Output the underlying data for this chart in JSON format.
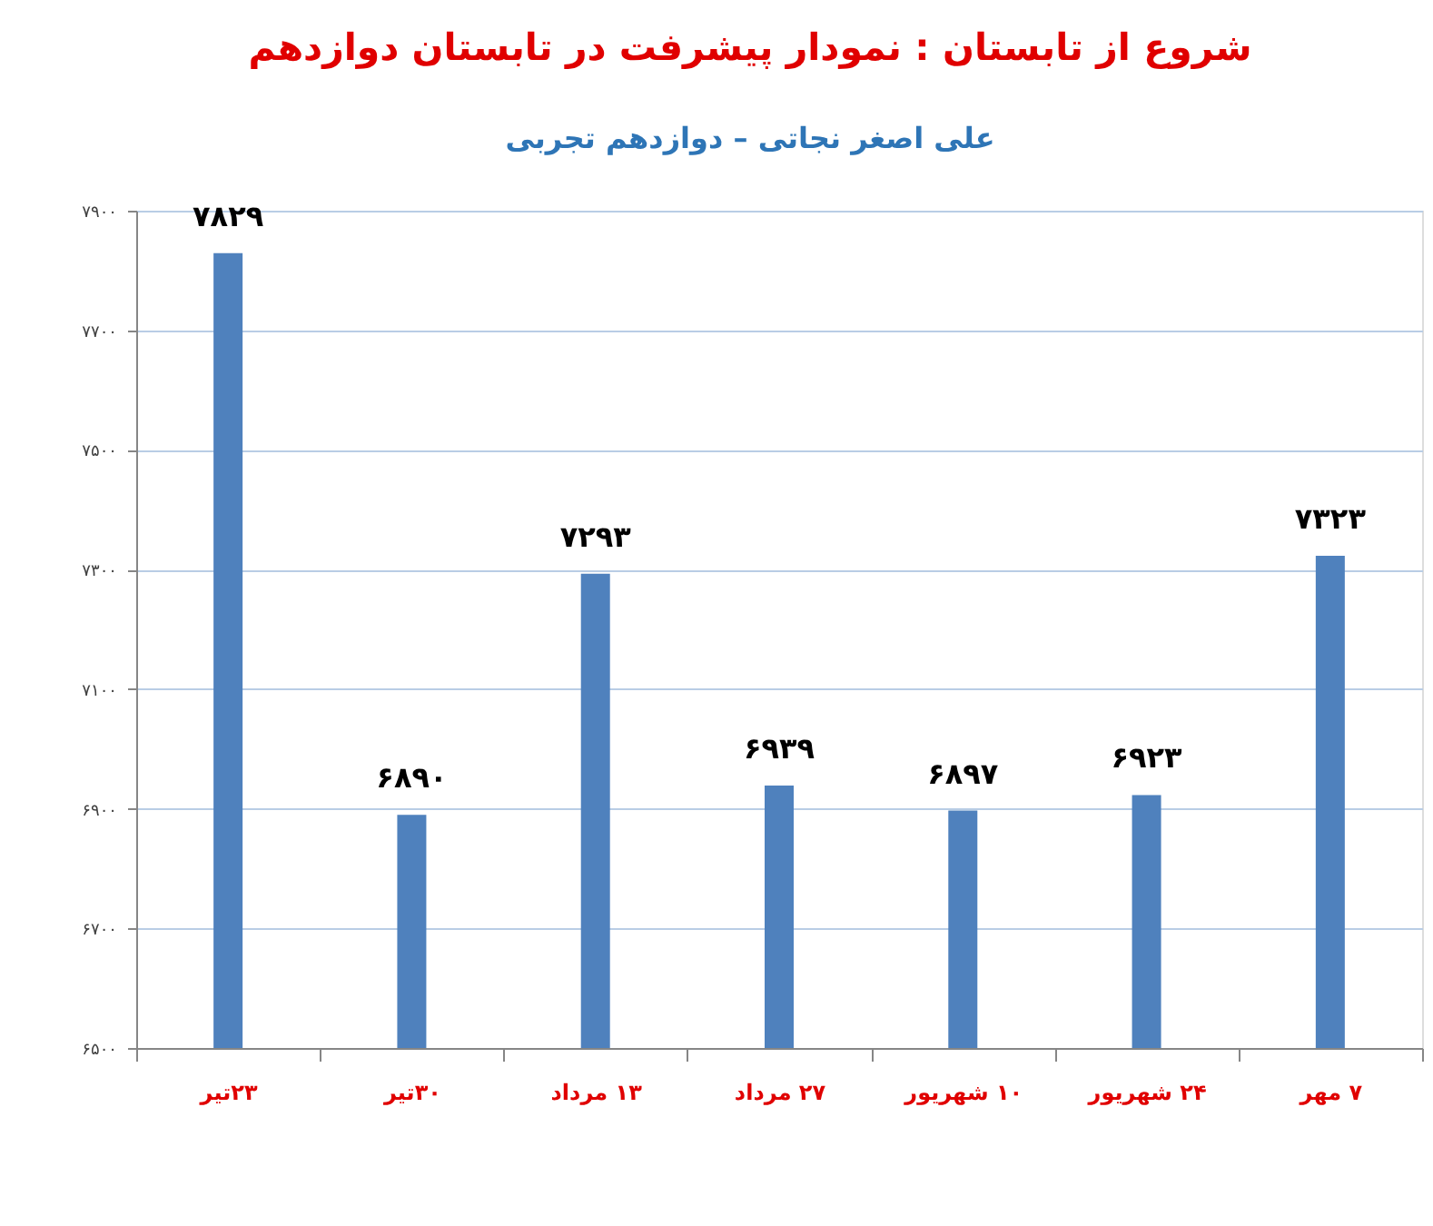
{
  "chart_data": {
    "type": "bar",
    "title": "شروع از تابستان : نمودار پیشرفت در تابستان دوازدهم",
    "subtitle": "علی اصغر نجاتی – دوازدهم تجربی",
    "categories": [
      "۲۳تیر",
      "۳۰تیر",
      "۱۳ مرداد",
      "۲۷ مرداد",
      "۱۰ شهریور",
      "۲۴ شهریور",
      "۷ مهر"
    ],
    "values": [
      7829,
      6890,
      7293,
      6939,
      6897,
      6923,
      7323
    ],
    "value_labels": [
      "۷۸۲۹",
      "۶۸۹۰",
      "۷۲۹۳",
      "۶۹۳۹",
      "۶۸۹۷",
      "۶۹۲۳",
      "۷۳۲۳"
    ],
    "color": "#4f81bd",
    "ylim": [
      6500,
      7900
    ],
    "yticks": [
      {
        "value": 6500,
        "label": "۶۵۰۰"
      },
      {
        "value": 6700,
        "label": "۶۷۰۰"
      },
      {
        "value": 6900,
        "label": "۶۹۰۰"
      },
      {
        "value": 7100,
        "label": "۷۱۰۰"
      },
      {
        "value": 7300,
        "label": "۷۳۰۰"
      },
      {
        "value": 7500,
        "label": "۷۵۰۰"
      },
      {
        "value": 7700,
        "label": "۷۷۰۰"
      },
      {
        "value": 7900,
        "label": "۷۹۰۰"
      }
    ],
    "grid": "y"
  }
}
